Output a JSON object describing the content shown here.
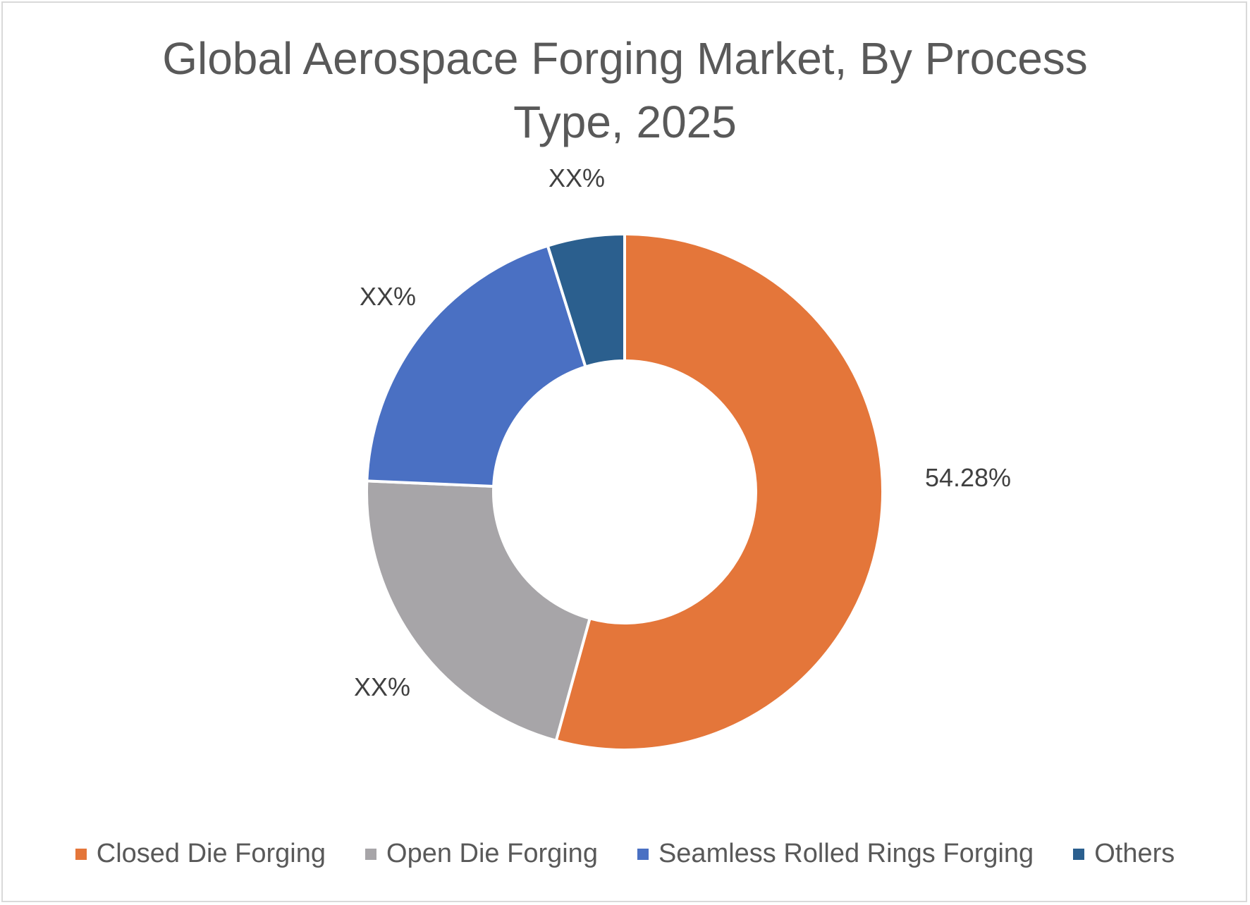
{
  "chart_data": {
    "type": "pie",
    "variant": "donut",
    "title_lines": [
      "Global Aerospace Forging Market, By Process",
      "Type, 2025"
    ],
    "categories": [
      "Closed Die Forging",
      "Open Die Forging",
      "Seamless Rolled Rings Forging",
      "Others"
    ],
    "values": [
      54.28,
      21.4,
      19.5,
      4.82
    ],
    "data_labels": [
      "54.28%",
      "XX%",
      "XX%",
      "XX%"
    ],
    "colors": [
      "#E4763A",
      "#A7A5A8",
      "#4A70C3",
      "#2B5F8E"
    ],
    "legend_position": "bottom"
  }
}
